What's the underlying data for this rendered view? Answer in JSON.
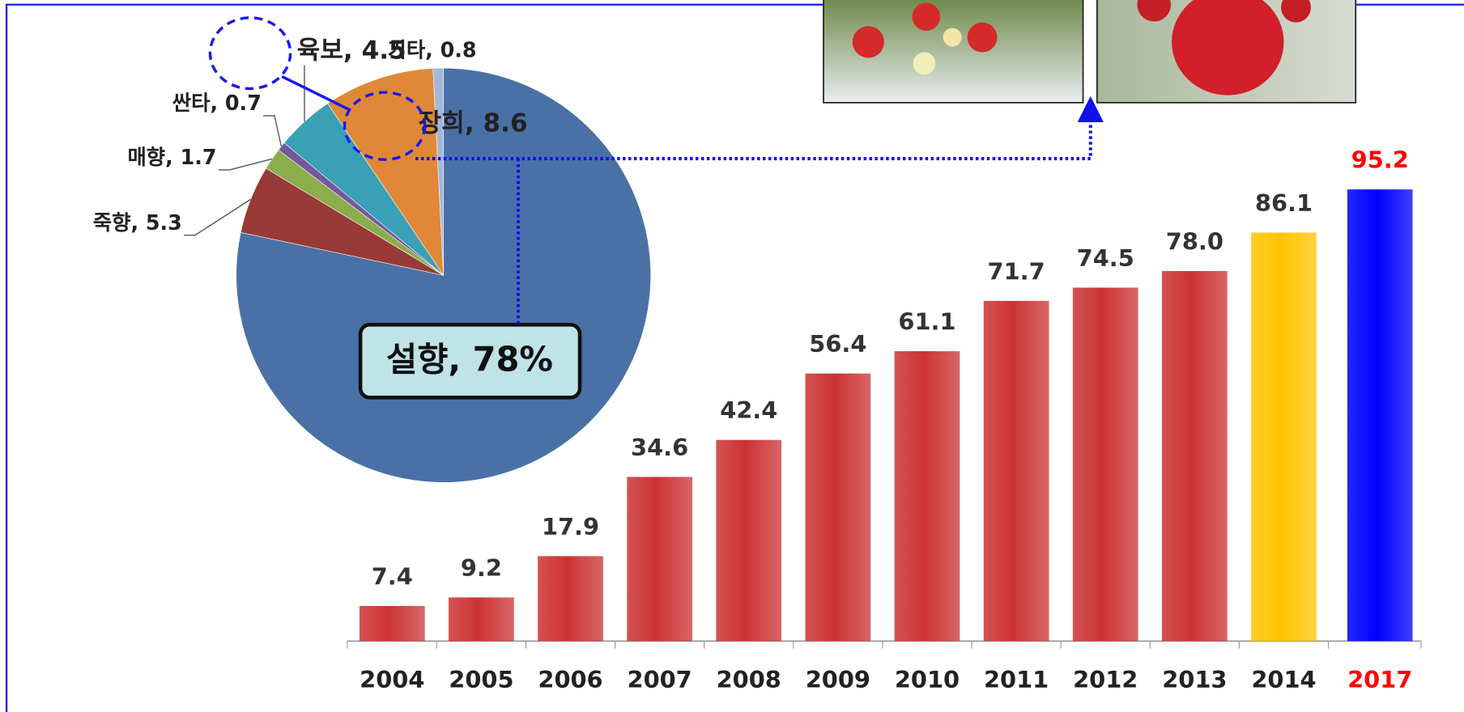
{
  "chart_data": [
    {
      "type": "pie",
      "values": [
        78,
        5.3,
        1.7,
        0.7,
        4.5,
        8.6,
        0.8
      ],
      "value_labels": [
        "설향, 78%",
        "죽향, 5.3",
        "매향, 1.7",
        "싼타, 0.7",
        "육보, 4.5",
        "장희, 8.6",
        "기타, 0.8"
      ],
      "colors": [
        "#4a71a6",
        "#983a37",
        "#8cad4c",
        "#74589c",
        "#3aa0b6",
        "#e08838",
        "#a3b7d8"
      ]
    },
    {
      "type": "bar",
      "categories": [
        "2004",
        "2005",
        "2006",
        "2007",
        "2008",
        "2009",
        "2010",
        "2011",
        "2012",
        "2013",
        "2014",
        "2017"
      ],
      "values": [
        7.4,
        9.2,
        17.9,
        34.6,
        42.4,
        56.4,
        61.1,
        71.7,
        74.5,
        78.0,
        86.1,
        95.2
      ],
      "value_labels": [
        "7.4",
        "9.2",
        "17.9",
        "34.6",
        "42.4",
        "56.4",
        "61.1",
        "71.7",
        "74.5",
        "78.0",
        "86.1",
        "95.2"
      ],
      "colors": [
        "#cc3333",
        "#cc3333",
        "#cc3333",
        "#cc3333",
        "#cc3333",
        "#cc3333",
        "#cc3333",
        "#cc3333",
        "#cc3333",
        "#cc3333",
        "#ffc400",
        "#0000ff"
      ],
      "label_colors": [
        "#222222",
        "#222222",
        "#222222",
        "#222222",
        "#222222",
        "#222222",
        "#222222",
        "#222222",
        "#222222",
        "#222222",
        "#222222",
        "#ff0000"
      ]
    }
  ]
}
